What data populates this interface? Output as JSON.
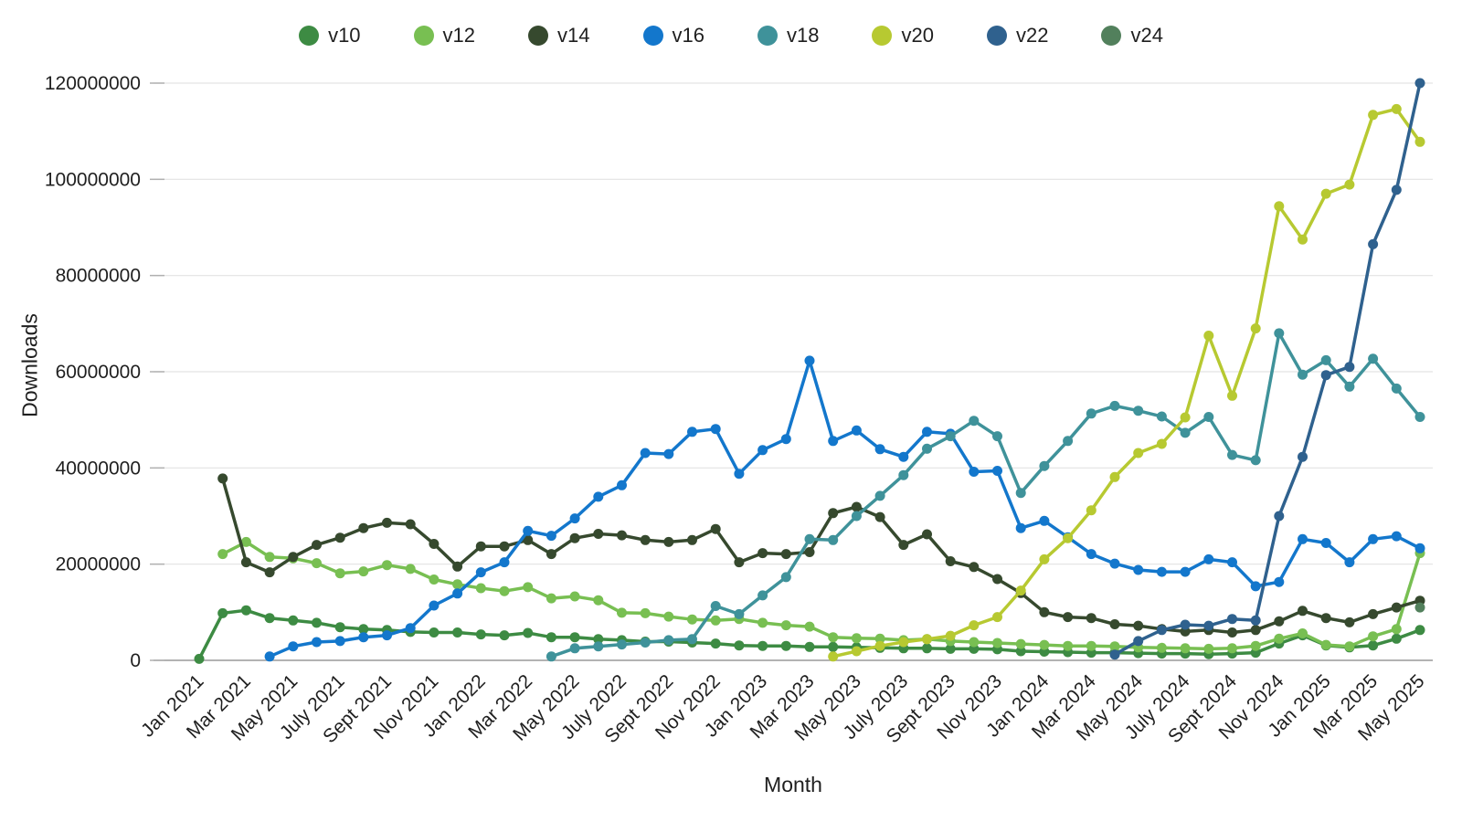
{
  "chart_data": {
    "type": "line",
    "xlabel": "Month",
    "ylabel": "Downloads",
    "ylim": [
      0,
      120000000
    ],
    "y_tick_step": 20000000,
    "y_tick_labels": [
      "0",
      "20000000",
      "40000000",
      "60000000",
      "80000000",
      "100000000",
      "120000000"
    ],
    "grid": "horizontal",
    "legend_position": "top-center",
    "x": [
      "Jan 2021",
      "Feb 2021",
      "Mar 2021",
      "Apr 2021",
      "May 2021",
      "Jun 2021",
      "Jul 2021",
      "Aug 2021",
      "Sep 2021",
      "Oct 2021",
      "Nov 2021",
      "Dec 2021",
      "Jan 2022",
      "Feb 2022",
      "Mar 2022",
      "Apr 2022",
      "May 2022",
      "Jun 2022",
      "Jul 2022",
      "Aug 2022",
      "Sep 2022",
      "Oct 2022",
      "Nov 2022",
      "Dec 2022",
      "Jan 2023",
      "Feb 2023",
      "Mar 2023",
      "Apr 2023",
      "May 2023",
      "Jun 2023",
      "Jul 2023",
      "Aug 2023",
      "Sep 2023",
      "Oct 2023",
      "Nov 2023",
      "Dec 2023",
      "Jan 2024",
      "Feb 2024",
      "Mar 2024",
      "Apr 2024",
      "May 2024",
      "Jun 2024",
      "Jul 2024",
      "Aug 2024",
      "Sep 2024",
      "Oct 2024",
      "Nov 2024",
      "Dec 2024",
      "Jan 2025",
      "Feb 2025",
      "Mar 2025",
      "Apr 2025",
      "May 2025"
    ],
    "x_tick_labels": [
      "Jan 2021",
      "Mar 2021",
      "May 2021",
      "July 2021",
      "Sept 2021",
      "Nov 2021",
      "Jan 2022",
      "Mar 2022",
      "May 2022",
      "July 2022",
      "Sept 2022",
      "Nov 2022",
      "Jan 2023",
      "Mar 2023",
      "May 2023",
      "July 2023",
      "Sept 2023",
      "Nov 2023",
      "Jan 2024",
      "Mar 2024",
      "May 2024",
      "July 2024",
      "Sept 2024",
      "Nov 2024",
      "Jan 2025",
      "Mar 2025",
      "May 2025"
    ],
    "series": [
      {
        "name": "v10",
        "color": "#3d8b43",
        "values": [
          300000,
          9800000,
          10400000,
          8800000,
          8300000,
          7800000,
          6900000,
          6500000,
          6300000,
          5900000,
          5800000,
          5800000,
          5400000,
          5200000,
          5700000,
          4800000,
          4800000,
          4400000,
          4200000,
          3900000,
          3900000,
          3700000,
          3500000,
          3100000,
          3000000,
          3000000,
          2800000,
          2800000,
          2700000,
          2600000,
          2500000,
          2500000,
          2400000,
          2400000,
          2300000,
          1900000,
          1800000,
          1700000,
          1600000,
          1600000,
          1500000,
          1400000,
          1400000,
          1300000,
          1400000,
          1600000,
          3500000,
          5200000,
          3100000,
          2700000,
          3100000,
          4500000,
          6300000
        ]
      },
      {
        "name": "v12",
        "color": "#78bf52",
        "values": [
          null,
          22100000,
          24600000,
          21500000,
          21200000,
          20200000,
          18100000,
          18500000,
          19800000,
          19000000,
          16800000,
          15800000,
          15000000,
          14400000,
          15200000,
          12900000,
          13300000,
          12500000,
          9900000,
          9800000,
          9100000,
          8500000,
          8300000,
          8600000,
          7800000,
          7300000,
          7000000,
          4800000,
          4600000,
          4500000,
          4200000,
          4400000,
          4000000,
          3800000,
          3600000,
          3400000,
          3200000,
          3000000,
          3000000,
          2900000,
          2700000,
          2600000,
          2500000,
          2400000,
          2500000,
          3000000,
          4500000,
          5600000,
          3200000,
          2900000,
          5000000,
          6500000,
          22300000
        ]
      },
      {
        "name": "v14",
        "color": "#36492e",
        "values": [
          null,
          37800000,
          20400000,
          18300000,
          21500000,
          24000000,
          25500000,
          27500000,
          28600000,
          28300000,
          24200000,
          19500000,
          23700000,
          23700000,
          25000000,
          22100000,
          25400000,
          26300000,
          26000000,
          25000000,
          24600000,
          25000000,
          27300000,
          20400000,
          22300000,
          22100000,
          22500000,
          30600000,
          31900000,
          29800000,
          24000000,
          26200000,
          20600000,
          19400000,
          16900000,
          14000000,
          10000000,
          9000000,
          8800000,
          7500000,
          7200000,
          6500000,
          6000000,
          6300000,
          5800000,
          6300000,
          8100000,
          10300000,
          8800000,
          7900000,
          9600000,
          11000000,
          12400000
        ]
      },
      {
        "name": "v16",
        "color": "#1377cc",
        "values": [
          null,
          null,
          null,
          800000,
          2900000,
          3800000,
          4000000,
          4800000,
          5200000,
          6700000,
          11400000,
          13900000,
          18300000,
          20400000,
          26900000,
          25900000,
          29500000,
          34000000,
          36400000,
          43100000,
          42900000,
          47500000,
          48100000,
          38800000,
          43700000,
          46000000,
          62300000,
          45600000,
          47800000,
          43900000,
          42300000,
          47500000,
          47100000,
          39200000,
          39400000,
          27500000,
          29000000,
          25600000,
          22100000,
          20100000,
          18800000,
          18400000,
          18400000,
          21000000,
          20400000,
          15400000,
          16300000,
          25200000,
          24400000,
          20400000,
          25200000,
          25800000,
          23300000
        ]
      },
      {
        "name": "v18",
        "color": "#3f929a",
        "values": [
          null,
          null,
          null,
          null,
          null,
          null,
          null,
          null,
          null,
          null,
          null,
          null,
          null,
          null,
          null,
          800000,
          2500000,
          2900000,
          3300000,
          3700000,
          4200000,
          4400000,
          11300000,
          9600000,
          13500000,
          17300000,
          25200000,
          25000000,
          30000000,
          34200000,
          38500000,
          44000000,
          46600000,
          49800000,
          46600000,
          34800000,
          40400000,
          45600000,
          51300000,
          52900000,
          51900000,
          50700000,
          47300000,
          50600000,
          42700000,
          41600000,
          68000000,
          59400000,
          62400000,
          56900000,
          62700000,
          56500000,
          50600000
        ]
      },
      {
        "name": "v20",
        "color": "#b7c931",
        "values": [
          null,
          null,
          null,
          null,
          null,
          null,
          null,
          null,
          null,
          null,
          null,
          null,
          null,
          null,
          null,
          null,
          null,
          null,
          null,
          null,
          null,
          null,
          null,
          null,
          null,
          null,
          null,
          800000,
          1900000,
          3000000,
          3800000,
          4400000,
          5100000,
          7300000,
          9000000,
          14500000,
          21000000,
          25400000,
          31200000,
          38100000,
          43100000,
          45000000,
          50500000,
          67500000,
          55000000,
          69000000,
          94400000,
          87500000,
          97000000,
          98900000,
          113400000,
          114600000,
          107800000
        ]
      },
      {
        "name": "v22",
        "color": "#2f618e",
        "values": [
          null,
          null,
          null,
          null,
          null,
          null,
          null,
          null,
          null,
          null,
          null,
          null,
          null,
          null,
          null,
          null,
          null,
          null,
          null,
          null,
          null,
          null,
          null,
          null,
          null,
          null,
          null,
          null,
          null,
          null,
          null,
          null,
          null,
          null,
          null,
          null,
          null,
          null,
          null,
          1200000,
          4000000,
          6300000,
          7400000,
          7200000,
          8600000,
          8300000,
          30000000,
          42300000,
          59300000,
          61000000,
          86500000,
          97800000,
          120000000
        ]
      },
      {
        "name": "v24",
        "color": "#52805c",
        "values": [
          null,
          null,
          null,
          null,
          null,
          null,
          null,
          null,
          null,
          null,
          null,
          null,
          null,
          null,
          null,
          null,
          null,
          null,
          null,
          null,
          null,
          null,
          null,
          null,
          null,
          null,
          null,
          null,
          null,
          null,
          null,
          null,
          null,
          null,
          null,
          null,
          null,
          null,
          null,
          null,
          null,
          null,
          null,
          null,
          null,
          null,
          null,
          null,
          null,
          null,
          null,
          null,
          11000000
        ]
      }
    ]
  },
  "style": {
    "gridline_color": "#e3e3e3",
    "zero_line_color": "#9a9a9a",
    "tick_mark_color": "#b0b0b0",
    "tick_text_color": "#1f1f1f"
  }
}
